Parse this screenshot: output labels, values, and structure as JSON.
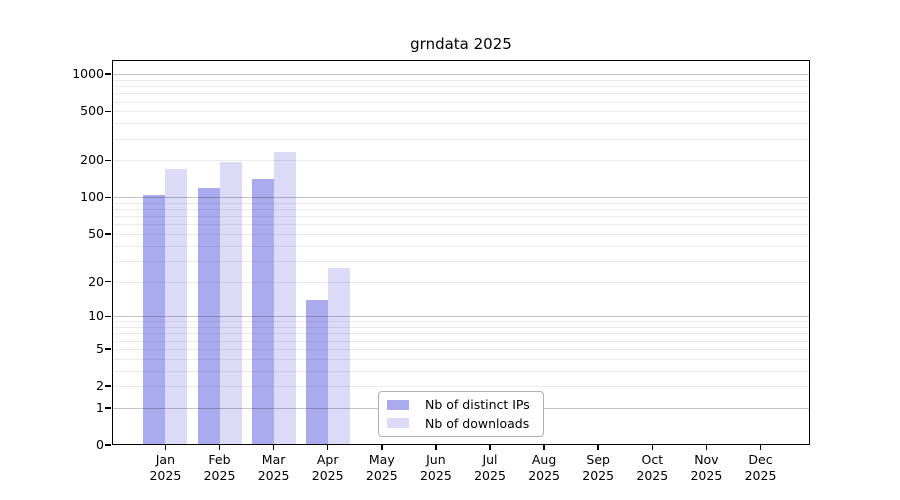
{
  "chart_data": {
    "type": "bar",
    "title": "grndata 2025",
    "x_axis": {
      "months": [
        "Jan",
        "Feb",
        "Mar",
        "Apr",
        "May",
        "Jun",
        "Jul",
        "Aug",
        "Sep",
        "Oct",
        "Nov",
        "Dec"
      ],
      "year": "2025"
    },
    "y_axis": {
      "scale": "log10(1+value)",
      "tick_values": [
        0,
        1,
        2,
        5,
        10,
        20,
        50,
        100,
        200,
        500,
        1000
      ],
      "tick_labels": [
        "0",
        "1",
        "2",
        "5",
        "10",
        "20",
        "50",
        "100",
        "200",
        "500",
        "1000"
      ],
      "range": [
        0,
        1000
      ],
      "grid": "on"
    },
    "series": [
      {
        "name": "Nb of distinct IPs",
        "color": "#aaaaee",
        "values": [
          104,
          118,
          140,
          14,
          0,
          0,
          0,
          0,
          0,
          0,
          0,
          0
        ]
      },
      {
        "name": "Nb of downloads",
        "color": "#dbdbf8",
        "values": [
          170,
          194,
          235,
          26,
          0,
          0,
          0,
          0,
          0,
          0,
          0,
          0
        ]
      }
    ],
    "legend": {
      "position": "inside-bottom-center"
    },
    "colors": {
      "major_gridline": "#c4c4c4",
      "minor_gridline": "#ebebeb",
      "axis": "#000000",
      "background": "#ffffff"
    }
  }
}
